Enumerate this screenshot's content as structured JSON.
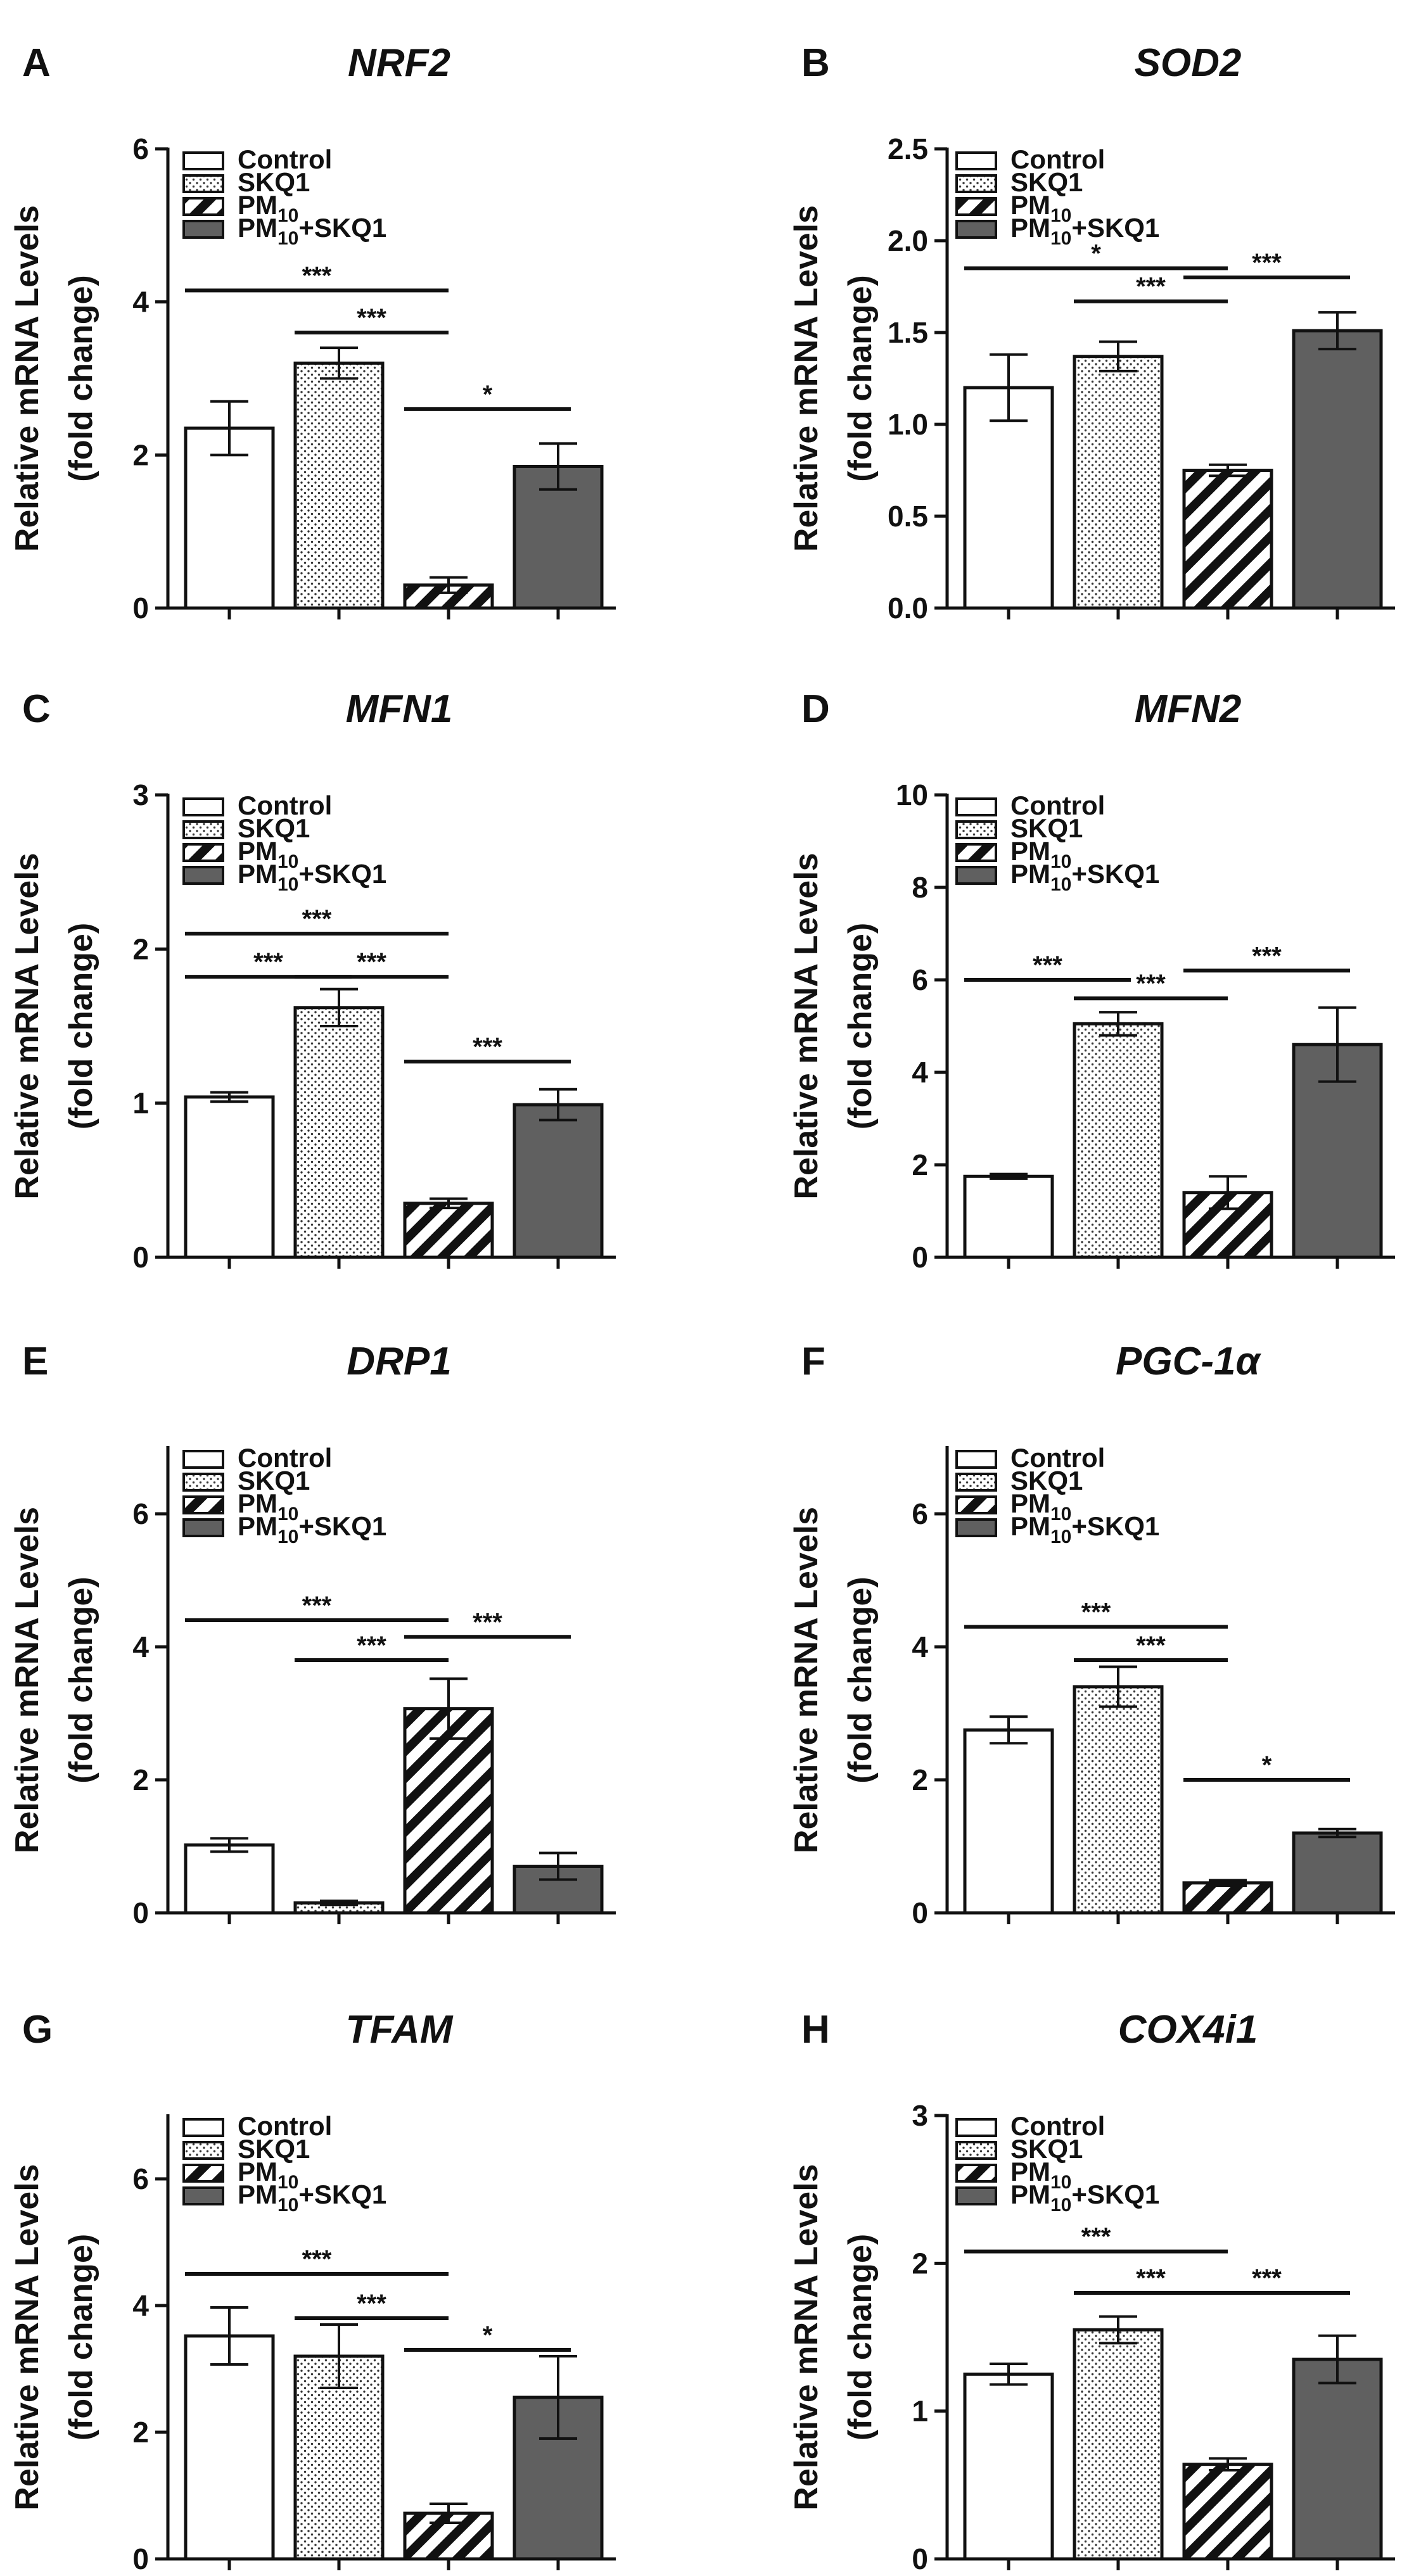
{
  "figure": {
    "ylabel_line1": "Relative mRNA Levels",
    "ylabel_line2": "(fold change)",
    "legend": [
      {
        "name": "Control",
        "sub": "",
        "suffix": "",
        "pattern": "empty"
      },
      {
        "name": "SKQ1",
        "sub": "",
        "suffix": "",
        "pattern": "dots"
      },
      {
        "name": "PM",
        "sub": "10",
        "suffix": "",
        "pattern": "hatch"
      },
      {
        "name": "PM",
        "sub": "10",
        "suffix": "+SKQ1",
        "pattern": "dark"
      }
    ],
    "colors": {
      "axis": "#111111",
      "dark_fill": "#606060",
      "open_fill": "#ffffff",
      "hatch": "#111111"
    }
  },
  "chart_data": [
    {
      "type": "bar",
      "letter": "A",
      "title": "NRF2",
      "ylabel": "Relative mRNA Levels (fold change)",
      "categories": [
        "Control",
        "SKQ1",
        "PM10",
        "PM10+SKQ1"
      ],
      "values": [
        2.35,
        3.2,
        0.3,
        1.85
      ],
      "errors": [
        0.35,
        0.2,
        0.1,
        0.3
      ],
      "ylim": [
        0,
        6
      ],
      "yticks": [
        0,
        2,
        4,
        6
      ],
      "tick_labels": [
        "0",
        "2",
        "4",
        "6"
      ],
      "significance": [
        {
          "from": 0,
          "to": 2,
          "label": "***",
          "y": 4.15
        },
        {
          "from": 1,
          "to": 2,
          "label": "***",
          "y": 3.6
        },
        {
          "from": 2,
          "to": 3,
          "label": "*",
          "y": 2.6
        }
      ]
    },
    {
      "type": "bar",
      "letter": "B",
      "title": "SOD2",
      "ylabel": "Relative mRNA Levels (fold change)",
      "categories": [
        "Control",
        "SKQ1",
        "PM10",
        "PM10+SKQ1"
      ],
      "values": [
        1.2,
        1.37,
        0.75,
        1.51
      ],
      "errors": [
        0.18,
        0.08,
        0.03,
        0.1
      ],
      "ylim": [
        0,
        2.5
      ],
      "yticks": [
        0,
        0.5,
        1,
        1.5,
        2,
        2.5
      ],
      "tick_labels": [
        "0.0",
        "0.5",
        "1.0",
        "1.5",
        "2.0",
        "2.5"
      ],
      "significance": [
        {
          "from": 0,
          "to": 2,
          "label": "*",
          "y": 1.85
        },
        {
          "from": 1,
          "to": 2,
          "label": "***",
          "y": 1.67
        },
        {
          "from": 2,
          "to": 3,
          "label": "***",
          "y": 1.8
        }
      ]
    },
    {
      "type": "bar",
      "letter": "C",
      "title": "MFN1",
      "ylabel": "Relative mRNA Levels (fold change)",
      "categories": [
        "Control",
        "SKQ1",
        "PM10",
        "PM10+SKQ1"
      ],
      "values": [
        1.04,
        1.62,
        0.35,
        0.99
      ],
      "errors": [
        0.03,
        0.12,
        0.03,
        0.1
      ],
      "ylim": [
        0,
        3
      ],
      "yticks": [
        0,
        1,
        2,
        3
      ],
      "tick_labels": [
        "0",
        "1",
        "2",
        "3"
      ],
      "significance": [
        {
          "from": 0,
          "to": 2,
          "label": "***",
          "y": 2.1
        },
        {
          "from": 0,
          "to": 1,
          "label": "***",
          "y": 1.82
        },
        {
          "from": 1,
          "to": 2,
          "label": "***",
          "y": 1.82
        },
        {
          "from": 2,
          "to": 3,
          "label": "***",
          "y": 1.27
        }
      ]
    },
    {
      "type": "bar",
      "letter": "D",
      "title": "MFN2",
      "ylabel": "Relative mRNA Levels (fold change)",
      "categories": [
        "Control",
        "SKQ1",
        "PM10",
        "PM10+SKQ1"
      ],
      "values": [
        1.75,
        5.05,
        1.4,
        4.6
      ],
      "errors": [
        0.05,
        0.25,
        0.35,
        0.8
      ],
      "ylim": [
        0,
        10
      ],
      "yticks": [
        0,
        2,
        4,
        6,
        8,
        10
      ],
      "tick_labels": [
        "0",
        "2",
        "4",
        "6",
        "8",
        "10"
      ],
      "significance": [
        {
          "from": 0,
          "to": 1,
          "label": "***",
          "y": 6.0
        },
        {
          "from": 1,
          "to": 2,
          "label": "***",
          "y": 5.6
        },
        {
          "from": 2,
          "to": 3,
          "label": "***",
          "y": 6.2
        }
      ]
    },
    {
      "type": "bar",
      "letter": "E",
      "title": "DRP1",
      "ylabel": "Relative mRNA Levels (fold change)",
      "categories": [
        "Control",
        "SKQ1",
        "PM10",
        "PM10+SKQ1"
      ],
      "values": [
        1.02,
        0.15,
        3.07,
        0.7
      ],
      "errors": [
        0.1,
        0.03,
        0.45,
        0.2
      ],
      "ylim": [
        0,
        7
      ],
      "yticks": [
        0,
        2,
        4,
        6
      ],
      "tick_labels": [
        "0",
        "2",
        "4",
        "6"
      ],
      "significance": [
        {
          "from": 0,
          "to": 2,
          "label": "***",
          "y": 4.4
        },
        {
          "from": 1,
          "to": 2,
          "label": "***",
          "y": 3.8
        },
        {
          "from": 2,
          "to": 3,
          "label": "***",
          "y": 4.15
        }
      ]
    },
    {
      "type": "bar",
      "letter": "F",
      "title": "PGC-1α",
      "ylabel": "Relative mRNA Levels (fold change)",
      "categories": [
        "Control",
        "SKQ1",
        "PM10",
        "PM10+SKQ1"
      ],
      "values": [
        2.75,
        3.4,
        0.45,
        1.2
      ],
      "errors": [
        0.2,
        0.3,
        0.04,
        0.06
      ],
      "ylim": [
        0,
        7
      ],
      "yticks": [
        0,
        2,
        4,
        6
      ],
      "tick_labels": [
        "0",
        "2",
        "4",
        "6"
      ],
      "significance": [
        {
          "from": 0,
          "to": 2,
          "label": "***",
          "y": 4.3
        },
        {
          "from": 1,
          "to": 2,
          "label": "***",
          "y": 3.8
        },
        {
          "from": 2,
          "to": 3,
          "label": "*",
          "y": 2.0
        }
      ]
    },
    {
      "type": "bar",
      "letter": "G",
      "title": "TFAM",
      "ylabel": "Relative mRNA Levels (fold change)",
      "categories": [
        "Control",
        "SKQ1",
        "PM10",
        "PM10+SKQ1"
      ],
      "values": [
        3.52,
        3.2,
        0.72,
        2.55
      ],
      "errors": [
        0.45,
        0.5,
        0.15,
        0.65
      ],
      "ylim": [
        0,
        7
      ],
      "yticks": [
        0,
        2,
        4,
        6
      ],
      "tick_labels": [
        "0",
        "2",
        "4",
        "6"
      ],
      "significance": [
        {
          "from": 0,
          "to": 2,
          "label": "***",
          "y": 4.5
        },
        {
          "from": 1,
          "to": 2,
          "label": "***",
          "y": 3.8
        },
        {
          "from": 2,
          "to": 3,
          "label": "*",
          "y": 3.3
        }
      ]
    },
    {
      "type": "bar",
      "letter": "H",
      "title": "COX4i1",
      "ylabel": "Relative mRNA Levels (fold change)",
      "categories": [
        "Control",
        "SKQ1",
        "PM10",
        "PM10+SKQ1"
      ],
      "values": [
        1.25,
        1.55,
        0.64,
        1.35
      ],
      "errors": [
        0.07,
        0.09,
        0.04,
        0.16
      ],
      "ylim": [
        0,
        3
      ],
      "yticks": [
        0,
        1,
        2,
        3
      ],
      "tick_labels": [
        "0",
        "1",
        "2",
        "3"
      ],
      "significance": [
        {
          "from": 0,
          "to": 2,
          "label": "***",
          "y": 2.08
        },
        {
          "from": 1,
          "to": 2,
          "label": "***",
          "y": 1.8
        },
        {
          "from": 2,
          "to": 3,
          "label": "***",
          "y": 1.8
        }
      ]
    }
  ]
}
